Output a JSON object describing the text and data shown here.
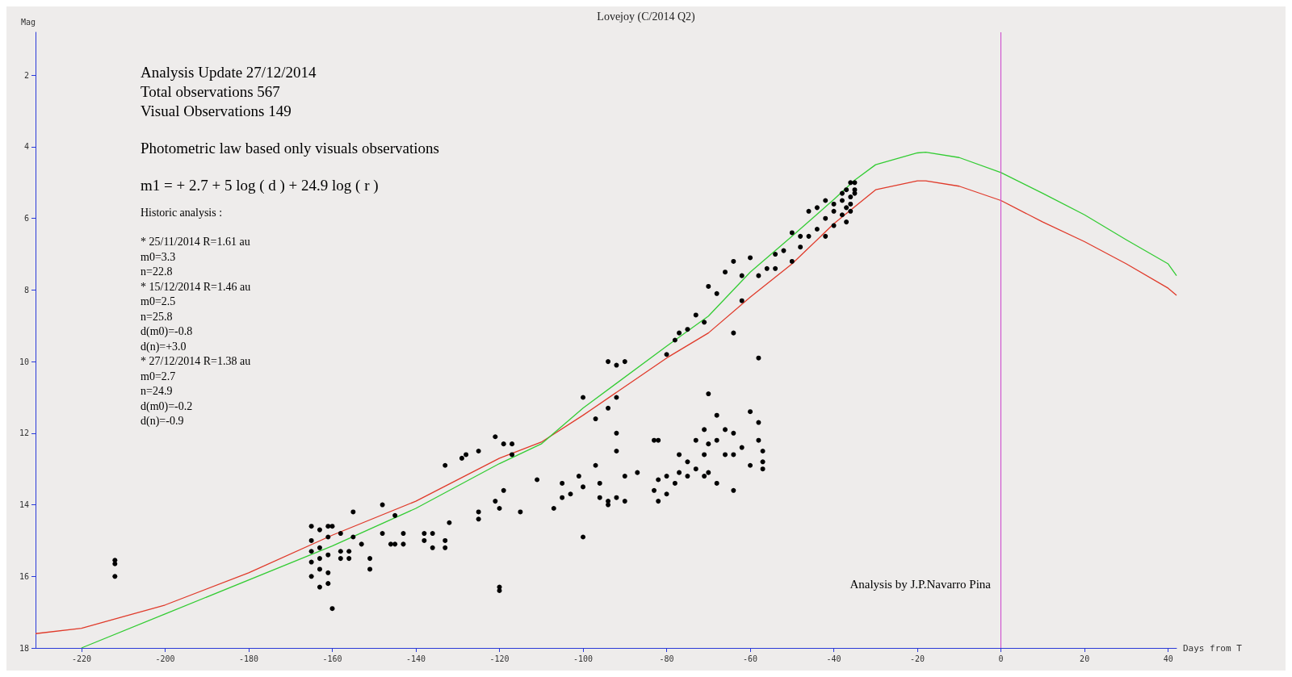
{
  "chart_data": {
    "type": "scatter",
    "title": "Lovejoy (C/2014 Q2)",
    "xlabel": "Days from T",
    "ylabel": "Mag",
    "xlim": [
      -231,
      42
    ],
    "ylim": [
      18,
      0.8
    ],
    "xticks": [
      -220,
      -200,
      -180,
      -160,
      -140,
      -120,
      -100,
      -80,
      -60,
      -40,
      -20,
      0,
      20,
      40
    ],
    "yticks": [
      2,
      4,
      6,
      8,
      10,
      12,
      14,
      16,
      18
    ],
    "ref_lines": [
      {
        "axis": "x",
        "value": 0,
        "label": null,
        "color": "#cc44cc"
      }
    ],
    "annotations": [
      "Analysis Update 27/12/2014",
      "Total observations 567",
      "Visual Observations 149",
      "Photometric law based only visuals observations",
      "m1 = + 2.7 + 5 log ( d ) + 24.9 log ( r )",
      "Historic analysis :",
      "* 25/11/2014 R=1.61 au",
      "m0=3.3",
      "n=22.8",
      "* 15/12/2014 R=1.46 au",
      "m0=2.5",
      "n=25.8",
      "d(m0)=-0.8",
      "d(n)=+3.0",
      "* 27/12/2014 R=1.38 au",
      "m0=2.7",
      "n=24.9",
      "d(m0)=-0.2",
      "d(n)=-0.9",
      "Analysis by J.P.Navarro Pina"
    ],
    "series": [
      {
        "type": "line",
        "color": "#e03a2a",
        "marker": "none",
        "x": [
          -231,
          -220,
          -200,
          -180,
          -160,
          -140,
          -120,
          -110,
          -100,
          -80,
          -70,
          -60,
          -50,
          -40,
          -30,
          -20,
          -18,
          -10,
          0,
          10,
          20,
          30,
          40,
          42
        ],
        "values": [
          17.6,
          17.45,
          16.8,
          15.9,
          14.85,
          13.9,
          12.7,
          12.25,
          11.5,
          9.9,
          9.2,
          8.2,
          7.27,
          6.15,
          5.2,
          4.95,
          4.95,
          5.1,
          5.5,
          6.1,
          6.65,
          7.27,
          7.95,
          8.15
        ]
      },
      {
        "type": "line",
        "color": "#33cc33",
        "marker": "none",
        "x": [
          -220,
          -200,
          -160,
          -140,
          -120,
          -110,
          -100,
          -80,
          -70,
          -60,
          -50,
          -40,
          -35,
          -30,
          -20,
          -18,
          -10,
          0,
          10,
          20,
          30,
          40,
          42
        ],
        "values": [
          18,
          17.05,
          15.15,
          14.1,
          12.85,
          12.3,
          11.3,
          9.57,
          8.73,
          7.5,
          6.5,
          5.47,
          4.93,
          4.5,
          4.17,
          4.15,
          4.3,
          4.72,
          5.3,
          5.9,
          6.6,
          7.27,
          7.6
        ]
      },
      {
        "type": "scatter",
        "color": "#000000",
        "marker": "circle",
        "x": [
          -212,
          -212,
          -212,
          -165,
          -165,
          -165,
          -165,
          -165,
          -163,
          -163,
          -163,
          -163,
          -163,
          -161,
          -161,
          -161,
          -161,
          -161,
          -160,
          -160,
          -158,
          -158,
          -158,
          -156,
          -156,
          -155,
          -155,
          -153,
          -151,
          -151,
          -148,
          -148,
          -146,
          -145,
          -145,
          -143,
          -143,
          -138,
          -138,
          -136,
          -136,
          -133,
          -133,
          -133,
          -132,
          -129,
          -128,
          -125,
          -125,
          -125,
          -121,
          -121,
          -120,
          -120,
          -120,
          -119,
          -119,
          -117,
          -117,
          -115,
          -111,
          -107,
          -105,
          -105,
          -103,
          -101,
          -100,
          -100,
          -100,
          -97,
          -97,
          -96,
          -96,
          -94,
          -94,
          -94,
          -94,
          -92,
          -92,
          -92,
          -92,
          -92,
          -90,
          -90,
          -90,
          -87,
          -83,
          -83,
          -82,
          -82,
          -82,
          -80,
          -80,
          -80,
          -78,
          -78,
          -77,
          -77,
          -77,
          -75,
          -75,
          -75,
          -73,
          -73,
          -73,
          -71,
          -71,
          -71,
          -71,
          -70,
          -70,
          -70,
          -70,
          -68,
          -68,
          -68,
          -68,
          -66,
          -66,
          -66,
          -64,
          -64,
          -64,
          -64,
          -64,
          -62,
          -62,
          -62,
          -60,
          -60,
          -60,
          -58,
          -58,
          -58,
          -58,
          -57,
          -57,
          -57,
          -56,
          -54,
          -54,
          -52,
          -50,
          -50,
          -48,
          -48,
          -46,
          -46,
          -44,
          -44,
          -42,
          -42,
          -42,
          -40,
          -40,
          -40,
          -38,
          -38,
          -38,
          -37,
          -37,
          -37,
          -36,
          -36,
          -36,
          -36,
          -35,
          -35,
          -35
        ],
        "values": [
          15.55,
          15.65,
          16.0,
          14.6,
          15.0,
          15.3,
          15.6,
          16.0,
          14.7,
          15.2,
          15.5,
          15.8,
          16.3,
          14.6,
          14.9,
          15.4,
          15.9,
          16.2,
          16.9,
          14.6,
          14.8,
          15.3,
          15.5,
          15.3,
          15.5,
          14.2,
          14.9,
          15.1,
          15.5,
          15.8,
          14.0,
          14.8,
          15.1,
          14.3,
          15.1,
          14.8,
          15.1,
          14.8,
          15.0,
          14.8,
          15.2,
          12.9,
          15.0,
          15.2,
          14.5,
          12.7,
          12.6,
          12.5,
          14.2,
          14.4,
          12.1,
          13.9,
          14.1,
          16.3,
          16.4,
          12.3,
          13.6,
          12.6,
          12.3,
          14.2,
          13.3,
          14.1,
          13.4,
          13.8,
          13.7,
          13.2,
          11.0,
          13.5,
          14.9,
          11.6,
          12.9,
          13.4,
          13.8,
          11.3,
          10.0,
          13.9,
          14.0,
          10.1,
          11.0,
          12.0,
          12.5,
          13.8,
          10.0,
          13.2,
          13.9,
          13.1,
          12.2,
          13.6,
          12.2,
          13.3,
          13.9,
          9.8,
          13.2,
          13.7,
          9.4,
          13.4,
          9.2,
          12.6,
          13.1,
          9.1,
          12.8,
          13.2,
          8.7,
          12.2,
          13.0,
          8.9,
          11.9,
          12.6,
          13.2,
          7.9,
          10.9,
          12.3,
          13.1,
          8.1,
          11.5,
          12.2,
          13.4,
          7.5,
          11.9,
          12.6,
          7.2,
          12.0,
          12.6,
          13.6,
          9.2,
          7.6,
          8.3,
          12.4,
          7.1,
          11.4,
          12.9,
          7.6,
          9.9,
          11.7,
          12.2,
          12.5,
          12.8,
          13.0,
          7.4,
          7.0,
          7.4,
          6.9,
          7.2,
          6.4,
          6.5,
          6.8,
          5.8,
          6.5,
          5.7,
          6.3,
          5.5,
          6.0,
          6.5,
          5.6,
          5.8,
          6.2,
          5.3,
          5.5,
          5.9,
          5.2,
          5.7,
          6.1,
          5.0,
          5.4,
          5.6,
          5.8,
          5.0,
          5.2,
          5.3
        ]
      }
    ]
  }
}
